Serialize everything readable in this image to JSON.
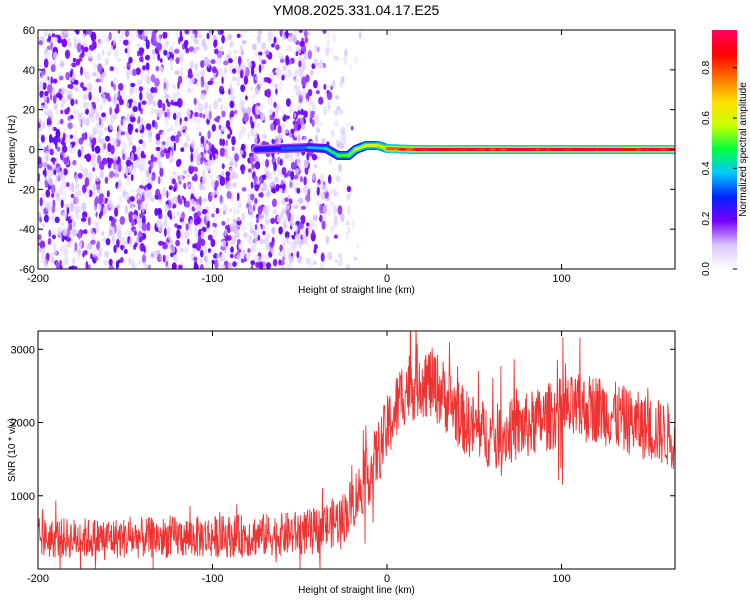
{
  "title": "YM08.2025.331.04.17.E25",
  "chart_data": [
    {
      "type": "heatmap",
      "name": "spectrogram",
      "xlabel": "Height of straight line (km)",
      "ylabel": "Frequency (Hz)",
      "xlim": [
        -200,
        165
      ],
      "ylim": [
        -60,
        60
      ],
      "xticks": [
        -200,
        -100,
        0,
        100
      ],
      "yticks": [
        -60,
        -40,
        -20,
        0,
        20,
        40,
        60
      ],
      "colorbar": {
        "label": "Normalized spectral amplitude",
        "range": [
          0,
          0.95
        ],
        "ticks": [
          0,
          0.2,
          0.4,
          0.6,
          0.8
        ],
        "colormap": [
          "#ffffff",
          "#d9c6ff",
          "#7a00ff",
          "#0020ff",
          "#00c8ff",
          "#00ff40",
          "#c8ff00",
          "#ffe000",
          "#ff7000",
          "#ff0000",
          "#ff0060"
        ]
      },
      "noise_region_x": [
        -200,
        -30
      ],
      "signal_line": [
        {
          "x": -75,
          "y": 0.0,
          "amp": 0.25
        },
        {
          "x": -60,
          "y": 0.5,
          "amp": 0.3
        },
        {
          "x": -45,
          "y": 1.0,
          "amp": 0.35
        },
        {
          "x": -35,
          "y": 0.5,
          "amp": 0.4
        },
        {
          "x": -28,
          "y": -3.0,
          "amp": 0.5
        },
        {
          "x": -22,
          "y": -3.0,
          "amp": 0.5
        },
        {
          "x": -18,
          "y": 0.0,
          "amp": 0.55
        },
        {
          "x": -12,
          "y": 2.0,
          "amp": 0.6
        },
        {
          "x": -5,
          "y": 2.0,
          "amp": 0.65
        },
        {
          "x": 0,
          "y": 0.5,
          "amp": 0.7
        },
        {
          "x": 15,
          "y": 0.0,
          "amp": 0.85
        },
        {
          "x": 165,
          "y": 0.0,
          "amp": 0.95
        }
      ]
    },
    {
      "type": "line",
      "name": "snr",
      "xlabel": "Height of straight line (km)",
      "ylabel": "SNR (10 * v/v)",
      "xlim": [
        -200,
        165
      ],
      "ylim": [
        0,
        3250
      ],
      "xticks": [
        -200,
        -100,
        0,
        100
      ],
      "yticks": [
        1000,
        2000,
        3000
      ],
      "color": "#ee3333",
      "envelope": [
        {
          "x": -200,
          "mean": 420,
          "spread": 280
        },
        {
          "x": -150,
          "mean": 420,
          "spread": 280
        },
        {
          "x": -100,
          "mean": 440,
          "spread": 290
        },
        {
          "x": -60,
          "mean": 470,
          "spread": 300
        },
        {
          "x": -40,
          "mean": 520,
          "spread": 320
        },
        {
          "x": -25,
          "mean": 700,
          "spread": 360
        },
        {
          "x": -10,
          "mean": 1300,
          "spread": 420
        },
        {
          "x": 0,
          "mean": 1900,
          "spread": 460
        },
        {
          "x": 10,
          "mean": 2450,
          "spread": 500
        },
        {
          "x": 20,
          "mean": 2600,
          "spread": 520
        },
        {
          "x": 30,
          "mean": 2450,
          "spread": 500
        },
        {
          "x": 45,
          "mean": 2000,
          "spread": 460
        },
        {
          "x": 60,
          "mean": 1800,
          "spread": 440
        },
        {
          "x": 80,
          "mean": 1950,
          "spread": 460
        },
        {
          "x": 100,
          "mean": 2150,
          "spread": 480
        },
        {
          "x": 120,
          "mean": 2200,
          "spread": 480
        },
        {
          "x": 140,
          "mean": 2000,
          "spread": 460
        },
        {
          "x": 165,
          "mean": 1800,
          "spread": 450
        }
      ]
    }
  ]
}
